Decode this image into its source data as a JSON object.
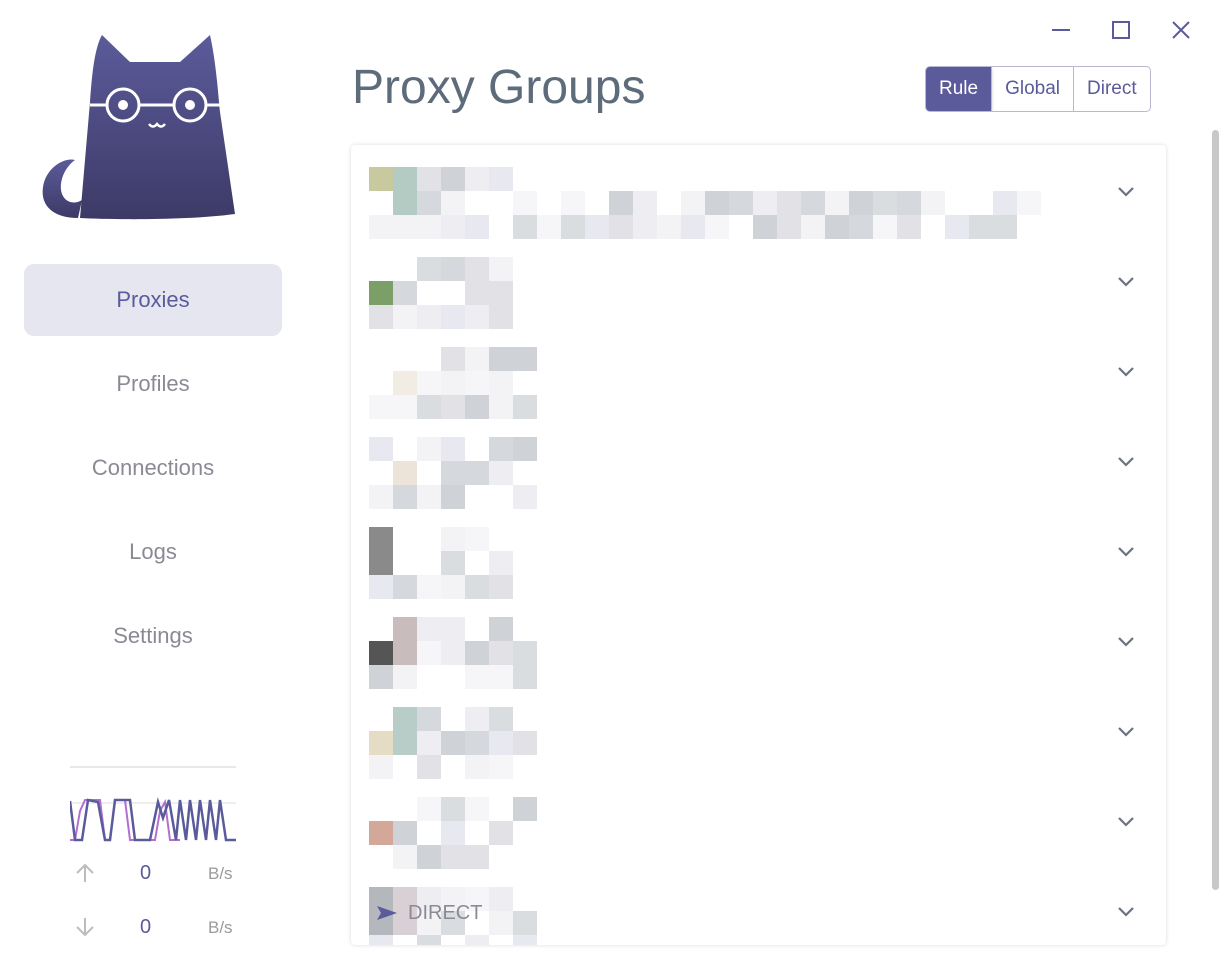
{
  "window_controls": [
    {
      "name": "minimize-icon"
    },
    {
      "name": "maximize-icon"
    },
    {
      "name": "close-icon"
    }
  ],
  "sidebar": {
    "items": [
      {
        "label": "Proxies",
        "active": true
      },
      {
        "label": "Profiles"
      },
      {
        "label": "Connections"
      },
      {
        "label": "Logs"
      },
      {
        "label": "Settings"
      }
    ]
  },
  "traffic": {
    "up_value": "0",
    "up_unit": "B/s",
    "down_value": "0",
    "down_unit": "B/s"
  },
  "main": {
    "title": "Proxy Groups",
    "modes": [
      {
        "label": "Rule",
        "active": true
      },
      {
        "label": "Global"
      },
      {
        "label": "Direct"
      }
    ],
    "groups_count_visible": 9,
    "last_group_current": "DIRECT"
  },
  "colors": {
    "accent": "#5b5b9b",
    "upload_line": "#b36fd0"
  }
}
